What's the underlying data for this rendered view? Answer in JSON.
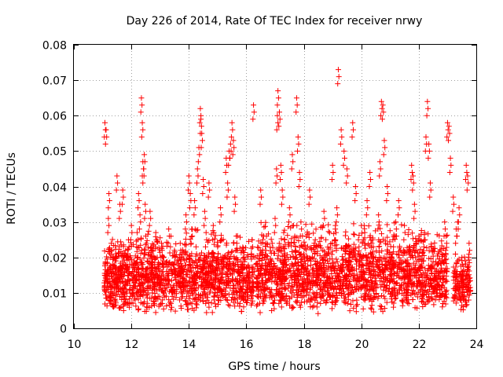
{
  "chart_data": {
    "type": "scatter",
    "title": "Day 226 of 2014, Rate Of TEC Index for receiver nrwy",
    "xlabel": "GPS time / hours",
    "ylabel": "ROTI / TECUs",
    "xlim": [
      10,
      24
    ],
    "ylim": [
      0,
      0.08
    ],
    "xticks": [
      10,
      12,
      14,
      16,
      18,
      20,
      22,
      24
    ],
    "yticks": [
      0,
      0.01,
      0.02,
      0.03,
      0.04,
      0.05,
      0.06,
      0.07,
      0.08
    ],
    "ytick_labels": [
      "0",
      "0.01",
      "0.02",
      "0.03",
      "0.04",
      "0.05",
      "0.06",
      "0.07",
      "0.08"
    ],
    "grid": true,
    "marker": "+",
    "series": [
      {
        "name": "ROTI",
        "color": "#ff0000",
        "x": [
          11.08,
          11.12,
          11.15,
          11.2,
          11.22,
          11.25,
          11.3,
          11.35,
          11.4,
          11.45,
          11.5,
          11.55,
          11.6,
          11.62,
          11.7,
          11.75,
          11.8,
          11.85,
          11.9,
          11.95,
          12.0,
          12.05,
          12.1,
          12.15,
          12.2,
          12.25,
          12.3,
          12.35,
          12.38,
          12.4,
          12.42,
          12.45,
          12.48,
          12.5,
          12.55,
          12.6,
          12.65,
          12.7,
          12.75,
          12.8,
          12.85,
          12.9,
          12.95,
          13.0,
          13.05,
          13.1,
          13.2,
          13.3,
          13.4,
          13.5,
          13.6,
          13.7,
          13.8,
          13.9,
          14.0,
          14.05,
          14.1,
          14.15,
          14.2,
          14.25,
          14.3,
          14.35,
          14.4,
          14.42,
          14.45,
          14.5,
          14.55,
          14.6,
          14.65,
          14.7,
          14.75,
          14.8,
          14.85,
          14.9,
          14.95,
          15.0,
          15.1,
          15.2,
          15.3,
          15.35,
          15.4,
          15.45,
          15.5,
          15.55,
          15.6,
          15.65,
          15.7,
          15.8,
          15.9,
          16.0,
          16.1,
          16.2,
          16.25,
          16.3,
          16.4,
          16.5,
          16.6,
          16.7,
          16.8,
          16.9,
          17.0,
          17.05,
          17.08,
          17.1,
          17.15,
          17.2,
          17.25,
          17.3,
          17.4,
          17.5,
          17.6,
          17.7,
          17.75,
          17.8,
          17.85,
          17.9,
          18.0,
          18.1,
          18.2,
          18.3,
          18.4,
          18.5,
          18.6,
          18.7,
          18.8,
          18.9,
          19.0,
          19.1,
          19.15,
          19.2,
          19.3,
          19.4,
          19.5,
          19.6,
          19.7,
          19.8,
          19.9,
          20.0,
          20.1,
          20.2,
          20.3,
          20.4,
          20.5,
          20.6,
          20.65,
          20.7,
          20.75,
          20.8,
          20.9,
          21.0,
          21.1,
          21.2,
          21.3,
          21.4,
          21.5,
          21.6,
          21.7,
          21.75,
          21.8,
          21.85,
          21.9,
          22.0,
          22.1,
          22.2,
          22.25,
          22.3,
          22.35,
          22.4,
          22.6,
          22.7,
          22.8,
          22.9,
          22.95,
          23.0,
          23.05,
          23.1,
          23.2,
          23.3,
          23.35,
          23.4,
          23.5,
          23.6,
          23.65,
          23.7,
          23.75
        ],
        "y": [
          0.058,
          0.056,
          0.015,
          0.031,
          0.038,
          0.012,
          0.024,
          0.018,
          0.01,
          0.021,
          0.043,
          0.016,
          0.035,
          0.013,
          0.039,
          0.009,
          0.022,
          0.017,
          0.025,
          0.011,
          0.029,
          0.014,
          0.019,
          0.012,
          0.027,
          0.038,
          0.032,
          0.065,
          0.058,
          0.047,
          0.045,
          0.049,
          0.035,
          0.026,
          0.019,
          0.014,
          0.033,
          0.022,
          0.017,
          0.011,
          0.027,
          0.02,
          0.013,
          0.016,
          0.024,
          0.012,
          0.018,
          0.028,
          0.011,
          0.022,
          0.015,
          0.024,
          0.013,
          0.032,
          0.043,
          0.038,
          0.028,
          0.017,
          0.036,
          0.023,
          0.045,
          0.051,
          0.062,
          0.059,
          0.055,
          0.042,
          0.033,
          0.027,
          0.019,
          0.041,
          0.014,
          0.021,
          0.029,
          0.012,
          0.017,
          0.023,
          0.034,
          0.013,
          0.048,
          0.041,
          0.05,
          0.052,
          0.058,
          0.053,
          0.037,
          0.026,
          0.018,
          0.011,
          0.022,
          0.014,
          0.017,
          0.025,
          0.063,
          0.02,
          0.013,
          0.039,
          0.011,
          0.026,
          0.018,
          0.009,
          0.031,
          0.045,
          0.06,
          0.067,
          0.061,
          0.046,
          0.039,
          0.027,
          0.018,
          0.034,
          0.049,
          0.022,
          0.065,
          0.054,
          0.044,
          0.03,
          0.021,
          0.015,
          0.039,
          0.012,
          0.025,
          0.017,
          0.011,
          0.033,
          0.021,
          0.014,
          0.046,
          0.029,
          0.034,
          0.073,
          0.056,
          0.05,
          0.045,
          0.023,
          0.058,
          0.04,
          0.025,
          0.016,
          0.029,
          0.036,
          0.044,
          0.025,
          0.02,
          0.032,
          0.047,
          0.064,
          0.063,
          0.053,
          0.04,
          0.017,
          0.025,
          0.03,
          0.036,
          0.016,
          0.029,
          0.012,
          0.022,
          0.046,
          0.043,
          0.035,
          0.024,
          0.019,
          0.015,
          0.027,
          0.054,
          0.064,
          0.052,
          0.041,
          0.012,
          0.016,
          0.021,
          0.03,
          0.026,
          0.058,
          0.057,
          0.048,
          0.037,
          0.028,
          0.03,
          0.034,
          0.02,
          0.016,
          0.046,
          0.043,
          0.024
        ]
      }
    ],
    "dense_cluster_segments": [
      {
        "xmin": 11.05,
        "xmax": 16.25,
        "ylow": 0.004,
        "yhigh": 0.028
      },
      {
        "xmin": 16.35,
        "xmax": 23.0,
        "ylow": 0.004,
        "yhigh": 0.03
      },
      {
        "xmin": 23.2,
        "xmax": 23.8,
        "ylow": 0.005,
        "yhigh": 0.022
      }
    ]
  }
}
